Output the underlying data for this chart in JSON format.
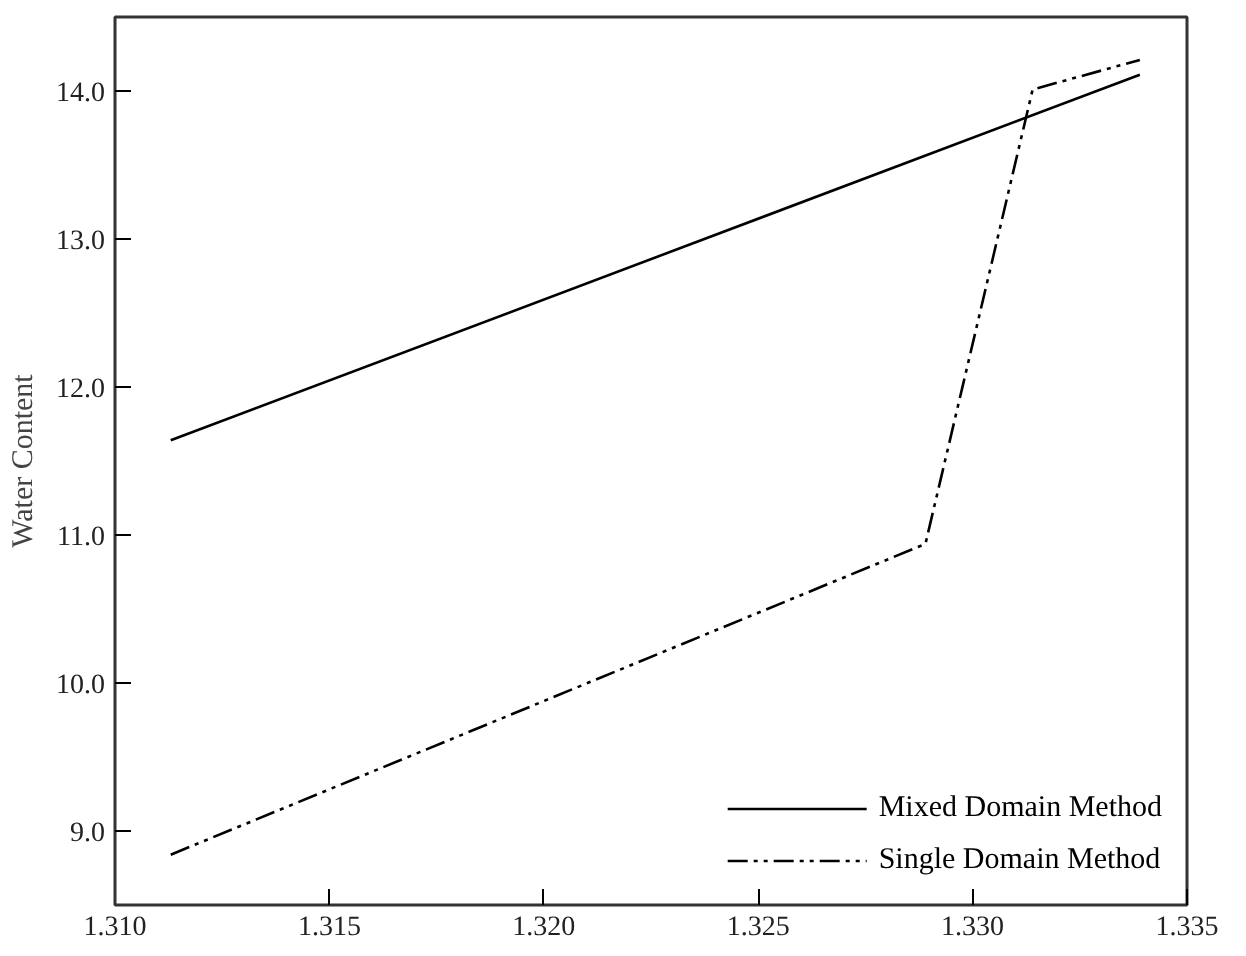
{
  "chart_data": {
    "type": "line",
    "ylabel": "Water Content",
    "xlim": [
      1.31,
      1.335
    ],
    "ylim": [
      8.5,
      14.5
    ],
    "xticks": [
      {
        "value": 1.31,
        "label": "1.310"
      },
      {
        "value": 1.315,
        "label": "1.315"
      },
      {
        "value": 1.32,
        "label": "1.320"
      },
      {
        "value": 1.325,
        "label": "1.325"
      },
      {
        "value": 1.33,
        "label": "1.330"
      },
      {
        "value": 1.335,
        "label": "1.335"
      }
    ],
    "yticks": [
      {
        "value": 9,
        "label": "9.0"
      },
      {
        "value": 10,
        "label": "10.0"
      },
      {
        "value": 11,
        "label": "11.0"
      },
      {
        "value": 12,
        "label": "12.0"
      },
      {
        "value": 13,
        "label": "13.0"
      },
      {
        "value": 14,
        "label": "14.0"
      }
    ],
    "grid": false,
    "legend": "bottom right",
    "series": [
      {
        "name": "Mixed Domain Method",
        "color": "#000000",
        "line_style": "solid",
        "x": [
          1.3113,
          1.3339
        ],
        "values": [
          11.64,
          14.11
        ]
      },
      {
        "name": "Single Domain Method",
        "color": "#000000",
        "line_style": "dashdotdot",
        "x": [
          1.3113,
          1.3289,
          1.3314,
          1.3339
        ],
        "values": [
          8.84,
          10.94,
          14.01,
          14.21
        ]
      }
    ]
  }
}
